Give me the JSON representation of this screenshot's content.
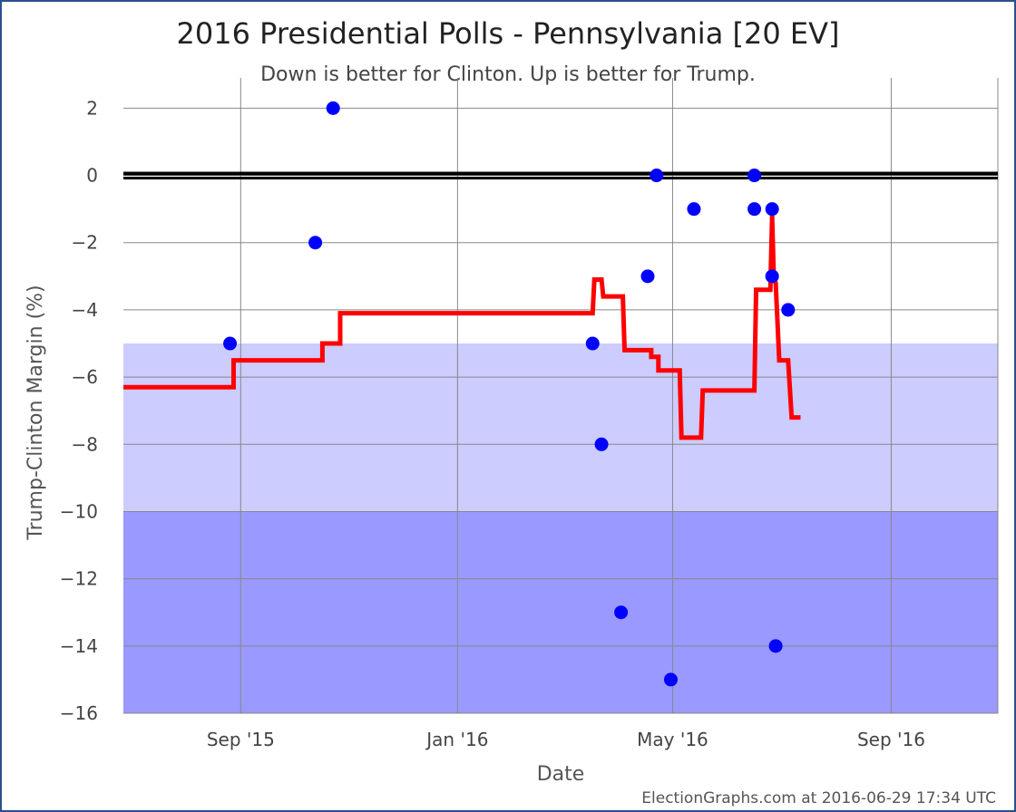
{
  "chart_data": {
    "type": "line",
    "title": "2016 Presidential Polls - Pennsylvania [20 EV]",
    "subtitle": "Down is better for Clinton. Up is better for Trump.",
    "xlabel": "Date",
    "ylabel": "Trump-Clinton Margin (%)",
    "credit": "ElectionGraphs.com at 2016-06-29 17:34 UTC",
    "xlim": [
      "2015-06-27",
      "2016-10-31"
    ],
    "ylim": [
      -16,
      2.9
    ],
    "grid": true,
    "x_ticks": [
      {
        "label": "Sep '15",
        "date": "2015-09-01"
      },
      {
        "label": "Jan '16",
        "date": "2016-01-01"
      },
      {
        "label": "May '16",
        "date": "2016-05-01"
      },
      {
        "label": "Sep '16",
        "date": "2016-09-01"
      }
    ],
    "y_ticks": [
      {
        "label": "2",
        "value": 2
      },
      {
        "label": "0",
        "value": 0
      },
      {
        "label": "−2",
        "value": -2
      },
      {
        "label": "−4",
        "value": -4
      },
      {
        "label": "−6",
        "value": -6
      },
      {
        "label": "−8",
        "value": -8
      },
      {
        "label": "−10",
        "value": -10
      },
      {
        "label": "−12",
        "value": -12
      },
      {
        "label": "−14",
        "value": -14
      },
      {
        "label": "−16",
        "value": -16
      }
    ],
    "bands": [
      {
        "from": -5,
        "to": -10,
        "color": "#ccccff"
      },
      {
        "from": -10,
        "to": -16,
        "color": "#9999ff"
      }
    ],
    "zero_line_color": "#000000",
    "polls": {
      "name": "Polls",
      "color": "#0000ff",
      "points": [
        {
          "x": "2015-08-26",
          "y": -5
        },
        {
          "x": "2015-10-13",
          "y": -2
        },
        {
          "x": "2015-10-23",
          "y": 2
        },
        {
          "x": "2016-03-17",
          "y": -5
        },
        {
          "x": "2016-03-22",
          "y": -8
        },
        {
          "x": "2016-04-02",
          "y": -13
        },
        {
          "x": "2016-04-17",
          "y": -3
        },
        {
          "x": "2016-04-22",
          "y": 0
        },
        {
          "x": "2016-04-30",
          "y": -15
        },
        {
          "x": "2016-05-13",
          "y": -1
        },
        {
          "x": "2016-06-16",
          "y": 0
        },
        {
          "x": "2016-06-16",
          "y": -1
        },
        {
          "x": "2016-06-26",
          "y": -1
        },
        {
          "x": "2016-06-26",
          "y": -3
        },
        {
          "x": "2016-06-28",
          "y": -14
        },
        {
          "x": "2016-07-05",
          "y": -4
        }
      ]
    },
    "average": {
      "name": "Poll average",
      "color": "#ff0000",
      "points": [
        {
          "x": "2015-06-27",
          "y": -6.3
        },
        {
          "x": "2015-08-28",
          "y": -6.3
        },
        {
          "x": "2015-08-28",
          "y": -5.5
        },
        {
          "x": "2015-10-17",
          "y": -5.5
        },
        {
          "x": "2015-10-17",
          "y": -5
        },
        {
          "x": "2015-10-27",
          "y": -5
        },
        {
          "x": "2015-10-27",
          "y": -4.1
        },
        {
          "x": "2016-03-17",
          "y": -4.1
        },
        {
          "x": "2016-03-18",
          "y": -3.1
        },
        {
          "x": "2016-03-22",
          "y": -3.1
        },
        {
          "x": "2016-03-23",
          "y": -3.6
        },
        {
          "x": "2016-04-03",
          "y": -3.6
        },
        {
          "x": "2016-04-04",
          "y": -5.2
        },
        {
          "x": "2016-04-19",
          "y": -5.2
        },
        {
          "x": "2016-04-19",
          "y": -5.4
        },
        {
          "x": "2016-04-23",
          "y": -5.4
        },
        {
          "x": "2016-04-23",
          "y": -5.8
        },
        {
          "x": "2016-05-05",
          "y": -5.8
        },
        {
          "x": "2016-05-06",
          "y": -7.8
        },
        {
          "x": "2016-05-17",
          "y": -7.8
        },
        {
          "x": "2016-05-18",
          "y": -6.4
        },
        {
          "x": "2016-06-16",
          "y": -6.4
        },
        {
          "x": "2016-06-17",
          "y": -3.4
        },
        {
          "x": "2016-06-25",
          "y": -3.4
        },
        {
          "x": "2016-06-26",
          "y": -1.2
        },
        {
          "x": "2016-06-26",
          "y": -1.3
        },
        {
          "x": "2016-06-27",
          "y": -3.1
        },
        {
          "x": "2016-06-28",
          "y": -3.2
        },
        {
          "x": "2016-06-30",
          "y": -5.5
        },
        {
          "x": "2016-07-05",
          "y": -5.5
        },
        {
          "x": "2016-07-07",
          "y": -7.2
        },
        {
          "x": "2016-07-12",
          "y": -7.2
        }
      ]
    }
  }
}
